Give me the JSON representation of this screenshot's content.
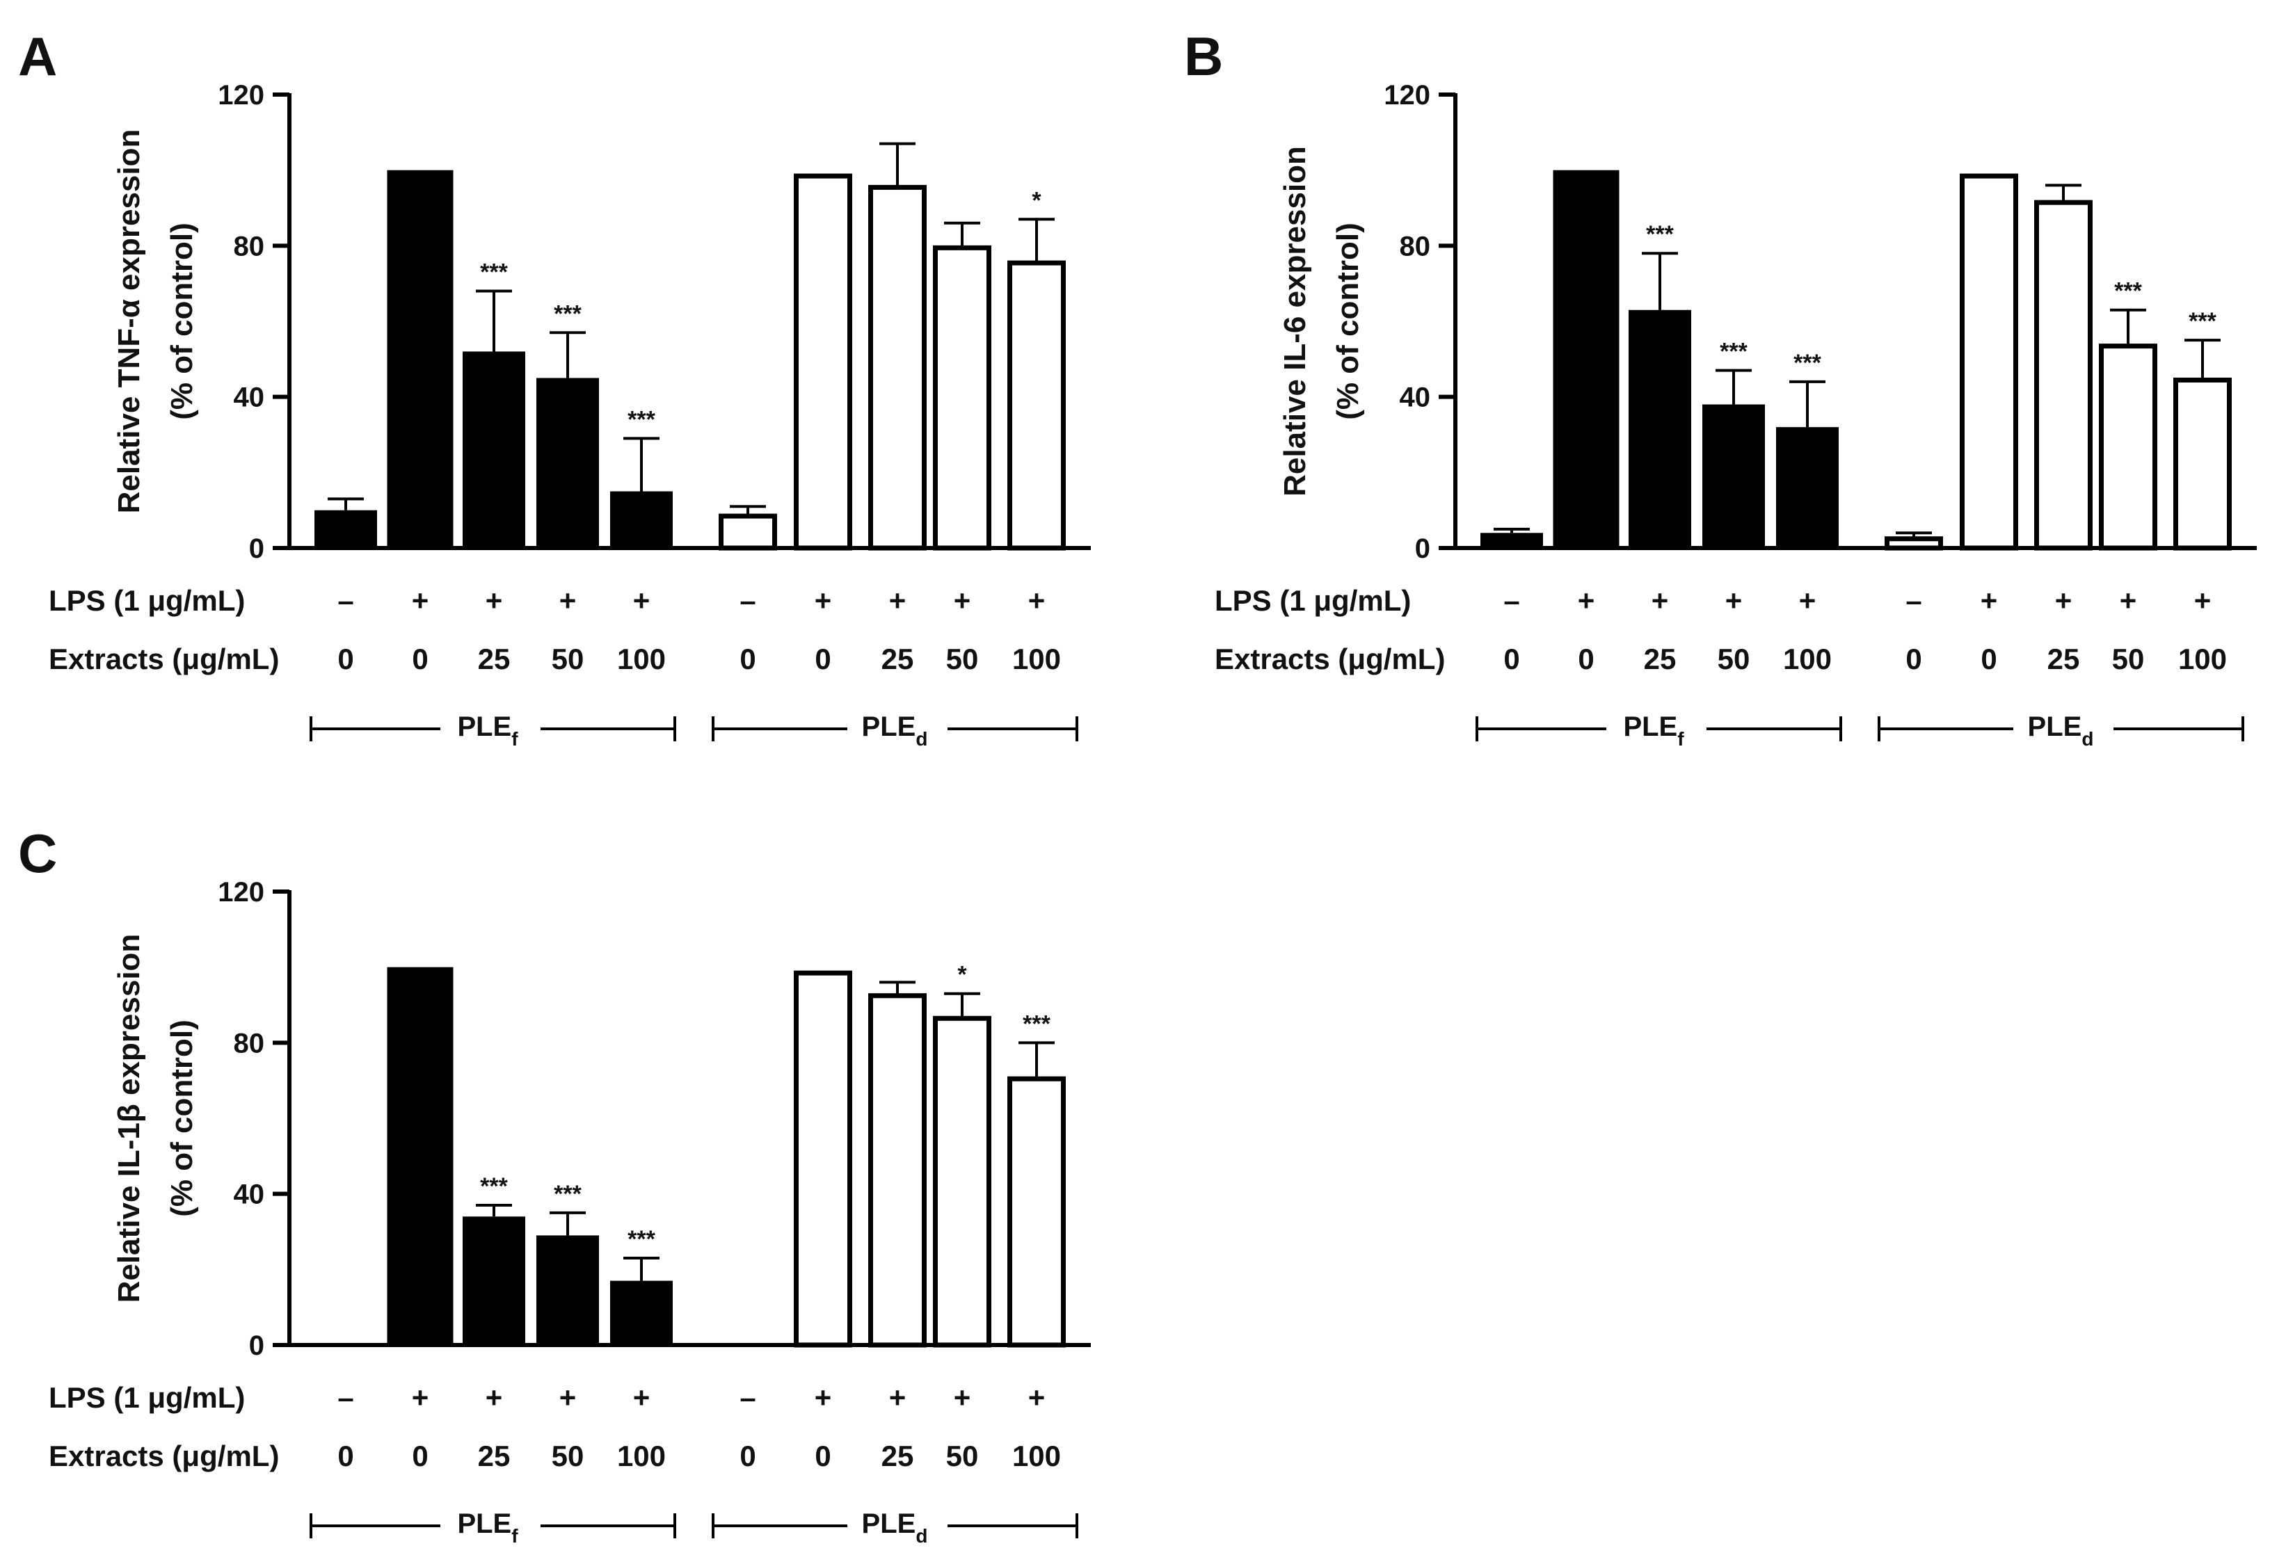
{
  "chart_data": [
    {
      "type": "bar",
      "panel": "A",
      "ylabel_line1": "Relative TNF-α expression",
      "ylabel_line2": "(% of control)",
      "ylim": [
        0,
        120
      ],
      "yticks": [
        "0",
        "40",
        "80",
        "120"
      ],
      "ytick_values": [
        0,
        40,
        80,
        120
      ],
      "bars": [
        {
          "group": "PLEf",
          "value": 10,
          "error": 3,
          "sig": "",
          "fill": "#000000"
        },
        {
          "group": "PLEf",
          "value": 100,
          "error": 0,
          "sig": "",
          "fill": "#000000"
        },
        {
          "group": "PLEf",
          "value": 52,
          "error": 16,
          "sig": "***",
          "fill": "#000000"
        },
        {
          "group": "PLEf",
          "value": 45,
          "error": 12,
          "sig": "***",
          "fill": "#000000"
        },
        {
          "group": "PLEf",
          "value": 15,
          "error": 14,
          "sig": "***",
          "fill": "#000000"
        },
        {
          "group": "PLEd",
          "value": 9,
          "error": 2,
          "sig": "",
          "fill": "#ffffff"
        },
        {
          "group": "PLEd",
          "value": 99,
          "error": 0,
          "sig": "",
          "fill": "#ffffff"
        },
        {
          "group": "PLEd",
          "value": 96,
          "error": 11,
          "sig": "",
          "fill": "#ffffff"
        },
        {
          "group": "PLEd",
          "value": 80,
          "error": 6,
          "sig": "",
          "fill": "#ffffff"
        },
        {
          "group": "PLEd",
          "value": 76,
          "error": 11,
          "sig": "*",
          "fill": "#ffffff"
        }
      ]
    },
    {
      "type": "bar",
      "panel": "B",
      "ylabel_line1": "Relative IL-6 expression",
      "ylabel_line2": "(% of control)",
      "ylim": [
        0,
        120
      ],
      "yticks": [
        "0",
        "40",
        "80",
        "120"
      ],
      "ytick_values": [
        0,
        40,
        80,
        120
      ],
      "bars": [
        {
          "group": "PLEf",
          "value": 4,
          "error": 1,
          "sig": "",
          "fill": "#000000"
        },
        {
          "group": "PLEf",
          "value": 100,
          "error": 0,
          "sig": "",
          "fill": "#000000"
        },
        {
          "group": "PLEf",
          "value": 63,
          "error": 15,
          "sig": "***",
          "fill": "#000000"
        },
        {
          "group": "PLEf",
          "value": 38,
          "error": 9,
          "sig": "***",
          "fill": "#000000"
        },
        {
          "group": "PLEf",
          "value": 32,
          "error": 12,
          "sig": "***",
          "fill": "#000000"
        },
        {
          "group": "PLEd",
          "value": 3,
          "error": 1,
          "sig": "",
          "fill": "#ffffff"
        },
        {
          "group": "PLEd",
          "value": 99,
          "error": 0,
          "sig": "",
          "fill": "#ffffff"
        },
        {
          "group": "PLEd",
          "value": 92,
          "error": 4,
          "sig": "",
          "fill": "#ffffff"
        },
        {
          "group": "PLEd",
          "value": 54,
          "error": 9,
          "sig": "***",
          "fill": "#ffffff"
        },
        {
          "group": "PLEd",
          "value": 45,
          "error": 10,
          "sig": "***",
          "fill": "#ffffff"
        }
      ]
    },
    {
      "type": "bar",
      "panel": "C",
      "ylabel_line1": "Relative IL-1β expression",
      "ylabel_line2": "(% of control)",
      "ylim": [
        0,
        120
      ],
      "yticks": [
        "0",
        "40",
        "80",
        "120"
      ],
      "ytick_values": [
        0,
        40,
        80,
        120
      ],
      "bars": [
        {
          "group": "PLEf",
          "value": 0,
          "error": 0,
          "sig": "",
          "fill": "#000000"
        },
        {
          "group": "PLEf",
          "value": 100,
          "error": 0,
          "sig": "",
          "fill": "#000000"
        },
        {
          "group": "PLEf",
          "value": 34,
          "error": 3,
          "sig": "***",
          "fill": "#000000"
        },
        {
          "group": "PLEf",
          "value": 29,
          "error": 6,
          "sig": "***",
          "fill": "#000000"
        },
        {
          "group": "PLEf",
          "value": 17,
          "error": 6,
          "sig": "***",
          "fill": "#000000"
        },
        {
          "group": "PLEd",
          "value": 0,
          "error": 0,
          "sig": "",
          "fill": "#ffffff"
        },
        {
          "group": "PLEd",
          "value": 99,
          "error": 0,
          "sig": "",
          "fill": "#ffffff"
        },
        {
          "group": "PLEd",
          "value": 93,
          "error": 3,
          "sig": "",
          "fill": "#ffffff"
        },
        {
          "group": "PLEd",
          "value": 87,
          "error": 6,
          "sig": "*",
          "fill": "#ffffff"
        },
        {
          "group": "PLEd",
          "value": 71,
          "error": 9,
          "sig": "***",
          "fill": "#ffffff"
        }
      ]
    }
  ],
  "conditions": {
    "lps_label": "LPS (1 μg/mL)",
    "lps": [
      "–",
      "+",
      "+",
      "+",
      "+",
      "–",
      "+",
      "+",
      "+",
      "+"
    ],
    "extracts_label": "Extracts (μg/mL)",
    "extracts": [
      "0",
      "0",
      "25",
      "50",
      "100",
      "0",
      "0",
      "25",
      "50",
      "100"
    ],
    "groups": [
      {
        "main": "PLE",
        "sub": "f"
      },
      {
        "main": "PLE",
        "sub": "d"
      }
    ]
  }
}
